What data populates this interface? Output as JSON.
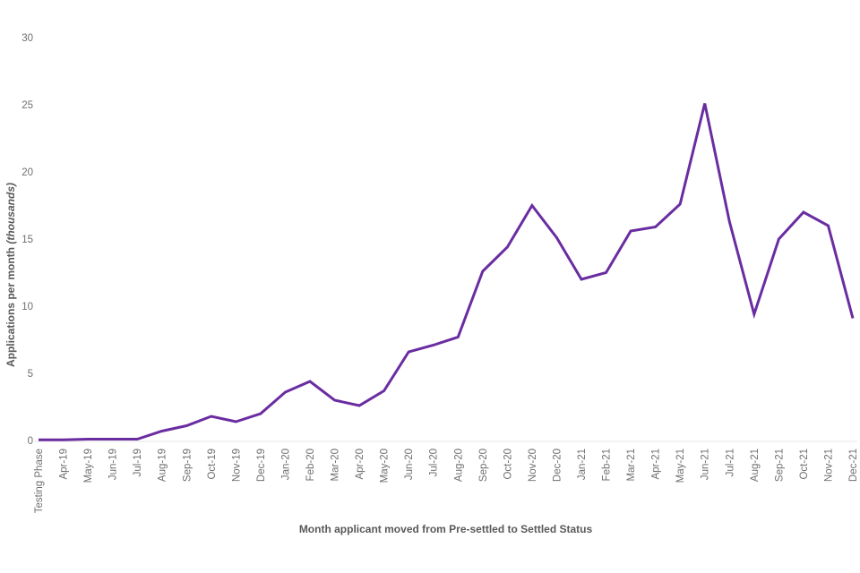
{
  "chart_data": {
    "type": "line",
    "title": "",
    "xlabel": "Month applicant moved from Pre-settled to Settled Status",
    "ylabel": "Applications per month (thousands)",
    "ylabel_prefix": "Applications per month ",
    "ylabel_italic": "(thousands)",
    "categories": [
      "Testing Phase",
      "Apr-19",
      "May-19",
      "Jun-19",
      "Jul-19",
      "Aug-19",
      "Sep-19",
      "Oct-19",
      "Nov-19",
      "Dec-19",
      "Jan-20",
      "Feb-20",
      "Mar-20",
      "Apr-20",
      "May-20",
      "Jun-20",
      "Jul-20",
      "Aug-20",
      "Sep-20",
      "Oct-20",
      "Nov-20",
      "Dec-20",
      "Jan-21",
      "Feb-21",
      "Mar-21",
      "Apr-21",
      "May-21",
      "Jun-21",
      "Jul-21",
      "Aug-21",
      "Sep-21",
      "Oct-21",
      "Nov-21",
      "Dec-21"
    ],
    "values": [
      0.05,
      0.05,
      0.1,
      0.1,
      0.1,
      0.7,
      1.1,
      1.8,
      1.4,
      2.0,
      3.6,
      4.4,
      3.0,
      2.6,
      3.7,
      6.6,
      7.1,
      7.7,
      12.6,
      14.4,
      17.5,
      15.1,
      12.0,
      12.5,
      15.6,
      15.9,
      17.6,
      25.1,
      16.3,
      9.4,
      15.0,
      17.0,
      16.0,
      9.1
    ],
    "ylim": [
      0,
      30
    ],
    "y_ticks": [
      0,
      5,
      10,
      15,
      20,
      25,
      30
    ],
    "grid": false,
    "legend": "none",
    "series_name": "Applications per month",
    "colors": {
      "line": "#6A2DA1",
      "axis_line": "#E6E6E6",
      "tick_label": "#6F6F6F",
      "axis_title": "#595959",
      "background": "#FFFFFF"
    }
  }
}
